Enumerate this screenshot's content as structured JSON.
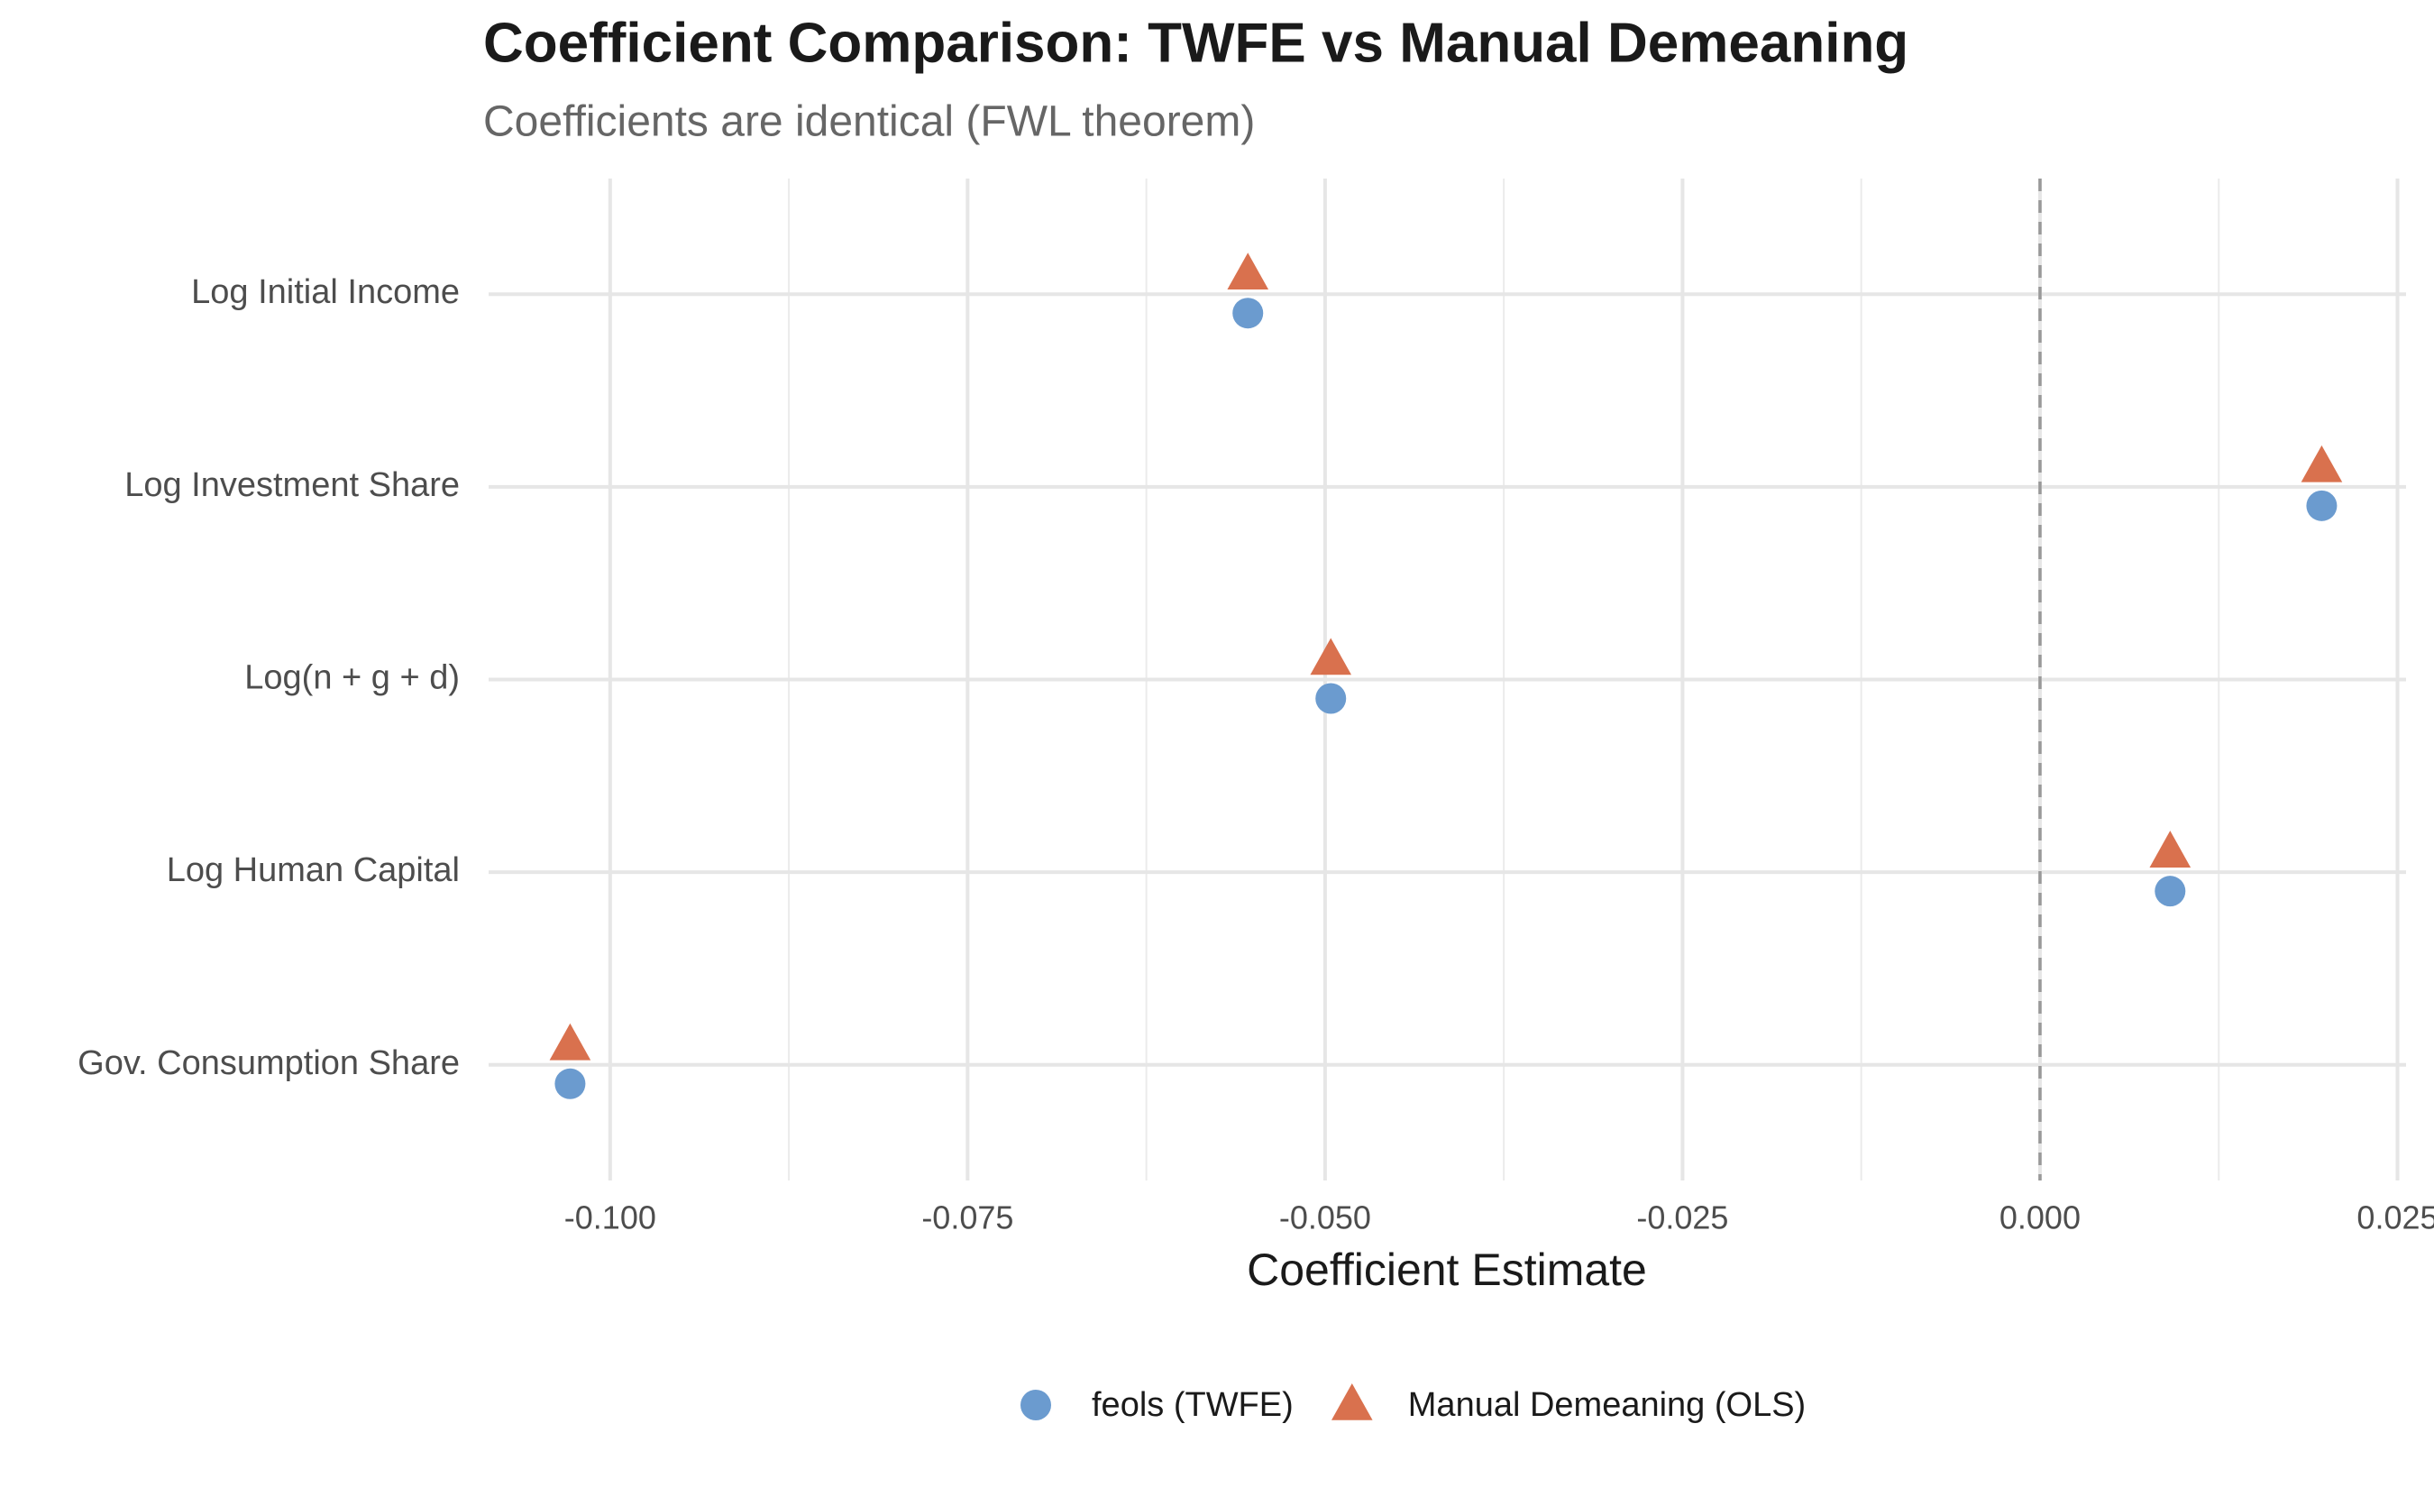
{
  "chart_data": {
    "type": "dot",
    "title": "Coefficient Comparison: TWFE vs Manual Demeaning",
    "subtitle": "Coefficients are identical (FWL theorem)",
    "x_label": "Coefficient Estimate",
    "categories": [
      "Log Initial Income",
      "Log Investment Share",
      "Log(n + g + d)",
      "Log Human Capital",
      "Gov. Consumption Share"
    ],
    "series": [
      {
        "name": "feols (TWFE)",
        "color": "#6b9bcf",
        "marker": "circle",
        "values": [
          -0.0554,
          0.0197,
          -0.0496,
          0.0091,
          -0.1028
        ]
      },
      {
        "name": "Manual Demeaning (OLS)",
        "color": "#d9714e",
        "marker": "triangle",
        "values": [
          -0.0554,
          0.0197,
          -0.0496,
          0.0091,
          -0.1028
        ]
      }
    ],
    "xlim": [
      -0.1085,
      0.0256
    ],
    "xticks": [
      {
        "value": -0.1,
        "label": "-0.100"
      },
      {
        "value": -0.075,
        "label": "-0.075"
      },
      {
        "value": -0.05,
        "label": "-0.050"
      },
      {
        "value": -0.025,
        "label": "-0.025"
      },
      {
        "value": 0,
        "label": "0.000"
      },
      {
        "value": 0.025,
        "label": "0.025"
      }
    ],
    "vline": 0,
    "grid": true,
    "legend": "bottom"
  }
}
